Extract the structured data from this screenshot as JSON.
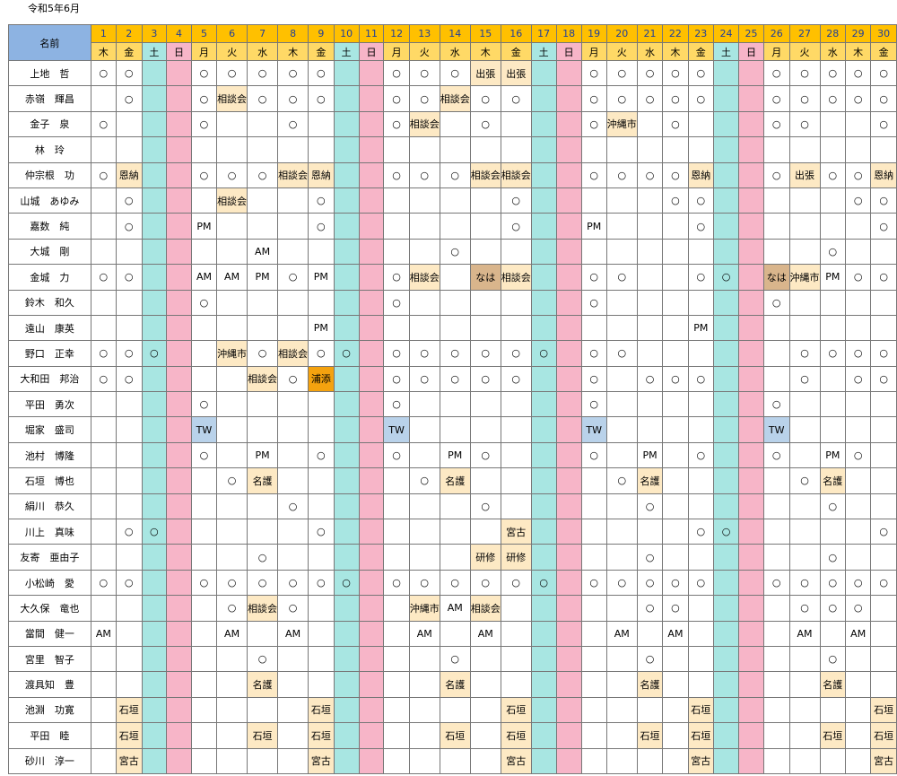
{
  "title": "令和5年6月",
  "name_header": "名前",
  "days": [
    {
      "d": "1",
      "w": "木"
    },
    {
      "d": "2",
      "w": "金"
    },
    {
      "d": "3",
      "w": "土"
    },
    {
      "d": "4",
      "w": "日"
    },
    {
      "d": "5",
      "w": "月"
    },
    {
      "d": "6",
      "w": "火"
    },
    {
      "d": "7",
      "w": "水"
    },
    {
      "d": "8",
      "w": "木"
    },
    {
      "d": "9",
      "w": "金"
    },
    {
      "d": "10",
      "w": "土"
    },
    {
      "d": "11",
      "w": "日"
    },
    {
      "d": "12",
      "w": "月"
    },
    {
      "d": "13",
      "w": "火"
    },
    {
      "d": "14",
      "w": "水"
    },
    {
      "d": "15",
      "w": "木"
    },
    {
      "d": "16",
      "w": "金"
    },
    {
      "d": "17",
      "w": "土"
    },
    {
      "d": "18",
      "w": "日"
    },
    {
      "d": "19",
      "w": "月"
    },
    {
      "d": "20",
      "w": "火"
    },
    {
      "d": "21",
      "w": "水"
    },
    {
      "d": "22",
      "w": "木"
    },
    {
      "d": "23",
      "w": "金"
    },
    {
      "d": "24",
      "w": "土"
    },
    {
      "d": "25",
      "w": "日"
    },
    {
      "d": "26",
      "w": "月"
    },
    {
      "d": "27",
      "w": "火"
    },
    {
      "d": "28",
      "w": "水"
    },
    {
      "d": "29",
      "w": "木"
    },
    {
      "d": "30",
      "w": "金"
    }
  ],
  "rows": [
    {
      "name": "上地　哲",
      "cells": [
        "○",
        "○",
        "",
        "",
        "○",
        "○",
        "○",
        "○",
        "○",
        "",
        "",
        "○",
        "○",
        "○",
        "出張",
        "出張",
        "",
        "",
        "○",
        "○",
        "○",
        "○",
        "○",
        "",
        "",
        "○",
        "○",
        "○",
        "○",
        "○"
      ]
    },
    {
      "name": "赤嶺　輝昌",
      "cells": [
        "",
        "○",
        "",
        "",
        "○",
        "相談会",
        "○",
        "○",
        "○",
        "",
        "",
        "○",
        "○",
        "相談会",
        "○",
        "○",
        "",
        "",
        "○",
        "○",
        "○",
        "○",
        "○",
        "",
        "",
        "○",
        "○",
        "○",
        "○",
        "○"
      ]
    },
    {
      "name": "金子　泉",
      "cells": [
        "○",
        "",
        "",
        "",
        "○",
        "",
        "",
        "○",
        "",
        "",
        "",
        "○",
        "相談会",
        "",
        "○",
        "",
        "",
        "",
        "○",
        "沖縄市",
        "",
        "○",
        "",
        "",
        "",
        "○",
        "○",
        "",
        "",
        "○"
      ]
    },
    {
      "name": "林　玲",
      "cells": [
        "",
        "",
        "",
        "",
        "",
        "",
        "",
        "",
        "",
        "",
        "",
        "",
        "",
        "",
        "",
        "",
        "",
        "",
        "",
        "",
        "",
        "",
        "",
        "",
        "",
        "",
        "",
        "",
        "",
        ""
      ]
    },
    {
      "name": "仲宗根　功",
      "cells": [
        "○",
        "恩納",
        "",
        "",
        "○",
        "○",
        "○",
        "相談会",
        "恩納",
        "",
        "",
        "○",
        "○",
        "○",
        "相談会",
        "相談会",
        "",
        "",
        "○",
        "○",
        "○",
        "○",
        "恩納",
        "",
        "",
        "○",
        "出張",
        "○",
        "○",
        "恩納"
      ]
    },
    {
      "name": "山城　あゆみ",
      "cells": [
        "",
        "○",
        "",
        "",
        "",
        "相談会",
        "",
        "",
        "○",
        "",
        "",
        "",
        "",
        "",
        "",
        "○",
        "",
        "",
        "",
        "",
        "",
        "○",
        "○",
        "",
        "",
        "",
        "",
        "",
        "○",
        "○"
      ]
    },
    {
      "name": "嘉数　純",
      "cells": [
        "",
        "○",
        "",
        "",
        "PM",
        "",
        "",
        "",
        "○",
        "",
        "",
        "",
        "",
        "",
        "",
        "○",
        "",
        "",
        "PM",
        "",
        "",
        "",
        "○",
        "",
        "",
        "",
        "",
        "",
        "",
        "○"
      ]
    },
    {
      "name": "大城　剛",
      "cells": [
        "",
        "",
        "",
        "",
        "",
        "",
        "AM",
        "",
        "",
        "",
        "",
        "",
        "",
        "○",
        "",
        "",
        "",
        "",
        "",
        "",
        "",
        "",
        "",
        "",
        "",
        "",
        "",
        "○",
        "",
        ""
      ]
    },
    {
      "name": "金城　力",
      "cells": [
        "○",
        "○",
        "",
        "",
        "AM",
        "AM",
        "PM",
        "○",
        "PM",
        "",
        "",
        "○",
        "相談会",
        "",
        "なは",
        "相談会",
        "",
        "",
        "○",
        "○",
        "",
        "",
        "○",
        "○",
        "",
        "なは",
        "沖縄市",
        "PM",
        "○",
        "○"
      ]
    },
    {
      "name": "鈴木　和久",
      "cells": [
        "",
        "",
        "",
        "",
        "○",
        "",
        "",
        "",
        "",
        "",
        "",
        "○",
        "",
        "",
        "",
        "",
        "",
        "",
        "○",
        "",
        "",
        "",
        "",
        "",
        "",
        "○",
        "",
        "",
        "",
        ""
      ]
    },
    {
      "name": "遠山　康英",
      "cells": [
        "",
        "",
        "",
        "",
        "",
        "",
        "",
        "",
        "PM",
        "",
        "",
        "",
        "",
        "",
        "",
        "",
        "",
        "",
        "",
        "",
        "",
        "",
        "PM",
        "",
        "",
        "",
        "",
        "",
        "",
        ""
      ]
    },
    {
      "name": "野口　正幸",
      "cells": [
        "○",
        "○",
        "○",
        "",
        "",
        "沖縄市",
        "○",
        "相談会",
        "○",
        "○",
        "",
        "○",
        "○",
        "○",
        "○",
        "○",
        "○",
        "",
        "○",
        "○",
        "",
        "",
        "",
        "",
        "",
        "",
        "○",
        "○",
        "○",
        "○"
      ]
    },
    {
      "name": "大和田　邦治",
      "cells": [
        "○",
        "○",
        "",
        "",
        "",
        "",
        "相談会",
        "○",
        "浦添",
        "",
        "",
        "○",
        "○",
        "○",
        "○",
        "○",
        "",
        "",
        "○",
        "",
        "○",
        "○",
        "○",
        "",
        "",
        "",
        "○",
        "",
        "○",
        "○"
      ]
    },
    {
      "name": "平田　勇次",
      "cells": [
        "",
        "",
        "",
        "",
        "○",
        "",
        "",
        "",
        "",
        "",
        "",
        "○",
        "",
        "",
        "",
        "",
        "",
        "",
        "○",
        "",
        "",
        "",
        "",
        "",
        "",
        "○",
        "",
        "",
        "",
        ""
      ]
    },
    {
      "name": "堀家　盛司",
      "cells": [
        "",
        "",
        "",
        "",
        "TW",
        "",
        "",
        "",
        "",
        "",
        "",
        "TW",
        "",
        "",
        "",
        "",
        "",
        "",
        "TW",
        "",
        "",
        "",
        "",
        "",
        "",
        "TW",
        "",
        "",
        "",
        ""
      ]
    },
    {
      "name": "池村　博隆",
      "cells": [
        "",
        "",
        "",
        "",
        "○",
        "",
        "PM",
        "",
        "○",
        "",
        "",
        "○",
        "",
        "PM",
        "○",
        "",
        "",
        "",
        "○",
        "",
        "PM",
        "",
        "○",
        "",
        "",
        "○",
        "",
        "PM",
        "○",
        ""
      ]
    },
    {
      "name": "石垣　博也",
      "cells": [
        "",
        "",
        "",
        "",
        "",
        "○",
        "名護",
        "",
        "",
        "",
        "",
        "",
        "○",
        "名護",
        "",
        "",
        "",
        "",
        "",
        "○",
        "名護",
        "",
        "",
        "",
        "",
        "",
        "○",
        "名護",
        "",
        ""
      ]
    },
    {
      "name": "絹川　恭久",
      "cells": [
        "",
        "",
        "",
        "",
        "",
        "",
        "",
        "○",
        "",
        "",
        "",
        "",
        "",
        "",
        "○",
        "",
        "",
        "",
        "",
        "",
        "○",
        "",
        "",
        "",
        "",
        "",
        "",
        "○",
        "",
        ""
      ]
    },
    {
      "name": "川上　真味",
      "cells": [
        "",
        "○",
        "○",
        "",
        "",
        "",
        "",
        "",
        "○",
        "",
        "",
        "",
        "",
        "",
        "",
        "宮古",
        "",
        "",
        "",
        "",
        "",
        "",
        "○",
        "○",
        "",
        "",
        "",
        "",
        "",
        "○"
      ]
    },
    {
      "name": "友寄　亜由子",
      "cells": [
        "",
        "",
        "",
        "",
        "",
        "",
        "○",
        "",
        "",
        "",
        "",
        "",
        "",
        "",
        "研修",
        "研修",
        "",
        "",
        "",
        "",
        "○",
        "",
        "",
        "",
        "",
        "",
        "",
        "○",
        "",
        ""
      ]
    },
    {
      "name": "小松崎　愛",
      "cells": [
        "○",
        "○",
        "",
        "",
        "○",
        "○",
        "○",
        "○",
        "○",
        "○",
        "",
        "○",
        "○",
        "○",
        "○",
        "○",
        "○",
        "",
        "○",
        "○",
        "○",
        "○",
        "○",
        "",
        "",
        "○",
        "○",
        "○",
        "○",
        "○"
      ]
    },
    {
      "name": "大久保　竜也",
      "cells": [
        "",
        "",
        "",
        "",
        "",
        "○",
        "相談会",
        "○",
        "",
        "",
        "",
        "",
        "沖縄市",
        "AM",
        "相談会",
        "",
        "",
        "",
        "",
        "",
        "○",
        "○",
        "",
        "",
        "",
        "",
        "○",
        "○",
        "○",
        ""
      ]
    },
    {
      "name": "當間　健一",
      "cells": [
        "AM",
        "",
        "",
        "",
        "",
        "AM",
        "",
        "AM",
        "",
        "",
        "",
        "",
        "AM",
        "",
        "AM",
        "",
        "",
        "",
        "",
        "AM",
        "",
        "AM",
        "",
        "",
        "",
        "",
        "AM",
        "",
        "AM",
        ""
      ]
    },
    {
      "name": "宮里　智子",
      "cells": [
        "",
        "",
        "",
        "",
        "",
        "",
        "○",
        "",
        "",
        "",
        "",
        "",
        "",
        "○",
        "",
        "",
        "",
        "",
        "",
        "",
        "○",
        "",
        "",
        "",
        "",
        "",
        "",
        "○",
        "",
        ""
      ]
    },
    {
      "name": "渡具知　豊",
      "cells": [
        "",
        "",
        "",
        "",
        "",
        "",
        "名護",
        "",
        "",
        "",
        "",
        "",
        "",
        "名護",
        "",
        "",
        "",
        "",
        "",
        "",
        "名護",
        "",
        "",
        "",
        "",
        "",
        "",
        "名護",
        "",
        ""
      ]
    },
    {
      "name": "池淵　功寛",
      "cells": [
        "",
        "石垣",
        "",
        "",
        "",
        "",
        "",
        "",
        "石垣",
        "",
        "",
        "",
        "",
        "",
        "",
        "石垣",
        "",
        "",
        "",
        "",
        "",
        "",
        "石垣",
        "",
        "",
        "",
        "",
        "",
        "",
        "石垣"
      ]
    },
    {
      "name": "平田　睦",
      "cells": [
        "",
        "石垣",
        "",
        "",
        "",
        "",
        "石垣",
        "",
        "石垣",
        "",
        "",
        "",
        "",
        "石垣",
        "",
        "石垣",
        "",
        "",
        "",
        "",
        "石垣",
        "",
        "石垣",
        "",
        "",
        "",
        "",
        "石垣",
        "",
        "石垣"
      ]
    },
    {
      "name": "砂川　淳一",
      "cells": [
        "",
        "宮古",
        "",
        "",
        "",
        "",
        "",
        "",
        "宮古",
        "",
        "",
        "",
        "",
        "",
        "",
        "宮古",
        "",
        "",
        "",
        "",
        "",
        "",
        "宮古",
        "",
        "",
        "",
        "",
        "",
        "",
        "宮古"
      ]
    }
  ],
  "cell_colors": {
    "相談会": "#fde9c4",
    "出張": "#fde9c4",
    "恩納": "#fde9c4",
    "沖縄市": "#fde9c4",
    "名護": "#fde9c4",
    "石垣": "#fde9c4",
    "宮古": "#fde9c4",
    "研修": "#fde9c4",
    "なは": "#d9b58c",
    "浦添": "#f4a20f",
    "TW": "#b9d2ea"
  },
  "weekend_colors": {
    "sat": "#a8e6e2",
    "sun": "#f7b5c8"
  },
  "header_colors": {
    "name": "#8db3e2",
    "day": "#ffc000",
    "weekday": "#ffd966"
  }
}
